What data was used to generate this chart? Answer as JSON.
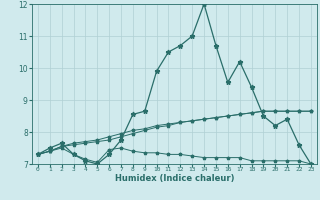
{
  "xlabel": "Humidex (Indice chaleur)",
  "bg_color": "#d0eaed",
  "grid_color": "#b0d0d4",
  "line_color": "#2a6e6a",
  "xlim": [
    -0.5,
    23.5
  ],
  "ylim": [
    7,
    12
  ],
  "yticks": [
    7,
    8,
    9,
    10,
    11,
    12
  ],
  "xticks": [
    0,
    1,
    2,
    3,
    4,
    5,
    6,
    7,
    8,
    9,
    10,
    11,
    12,
    13,
    14,
    15,
    16,
    17,
    18,
    19,
    20,
    21,
    22,
    23
  ],
  "line1_x": [
    0,
    1,
    2,
    3,
    4,
    5,
    6,
    7,
    8,
    9,
    10,
    11,
    12,
    13,
    14,
    15,
    16,
    17,
    18,
    19,
    20,
    21,
    22,
    23
  ],
  "line1_y": [
    7.3,
    7.5,
    7.65,
    7.3,
    7.1,
    7.0,
    7.3,
    7.75,
    8.55,
    8.65,
    9.9,
    10.5,
    10.7,
    11.0,
    12.0,
    10.7,
    9.55,
    10.2,
    9.4,
    8.5,
    8.2,
    8.4,
    7.6,
    7.0
  ],
  "line2_x": [
    0,
    1,
    2,
    3,
    4,
    5,
    6,
    7,
    8,
    9,
    10,
    11,
    12,
    13,
    14,
    15,
    16,
    17,
    18,
    19,
    20,
    21,
    22,
    23
  ],
  "line2_y": [
    7.3,
    7.4,
    7.55,
    7.6,
    7.65,
    7.7,
    7.75,
    7.85,
    7.95,
    8.05,
    8.15,
    8.2,
    8.3,
    8.35,
    8.4,
    8.45,
    8.5,
    8.55,
    8.6,
    8.65,
    8.65,
    8.65,
    8.65,
    8.65
  ],
  "line3_x": [
    0,
    1,
    2,
    3,
    4,
    5,
    6,
    7,
    8,
    9,
    10,
    11,
    12,
    13,
    14,
    15,
    16,
    17,
    18,
    19,
    20,
    21,
    22,
    23
  ],
  "line3_y": [
    7.3,
    7.4,
    7.5,
    7.3,
    7.15,
    7.05,
    7.45,
    7.5,
    7.4,
    7.35,
    7.35,
    7.3,
    7.3,
    7.25,
    7.2,
    7.2,
    7.2,
    7.2,
    7.1,
    7.1,
    7.1,
    7.1,
    7.1,
    7.0
  ],
  "line4_x": [
    0,
    1,
    2,
    3,
    4,
    5,
    6,
    7,
    8,
    9,
    10,
    11,
    12,
    13,
    14,
    15,
    16,
    17,
    18,
    19,
    20,
    21,
    22,
    23
  ],
  "line4_y": [
    7.3,
    7.4,
    7.55,
    7.65,
    7.7,
    7.75,
    7.85,
    7.95,
    8.05,
    8.1,
    8.2,
    8.25,
    8.3,
    8.35,
    8.4,
    8.45,
    8.5,
    8.55,
    8.6,
    8.65,
    8.65,
    8.65,
    8.65,
    8.65
  ]
}
